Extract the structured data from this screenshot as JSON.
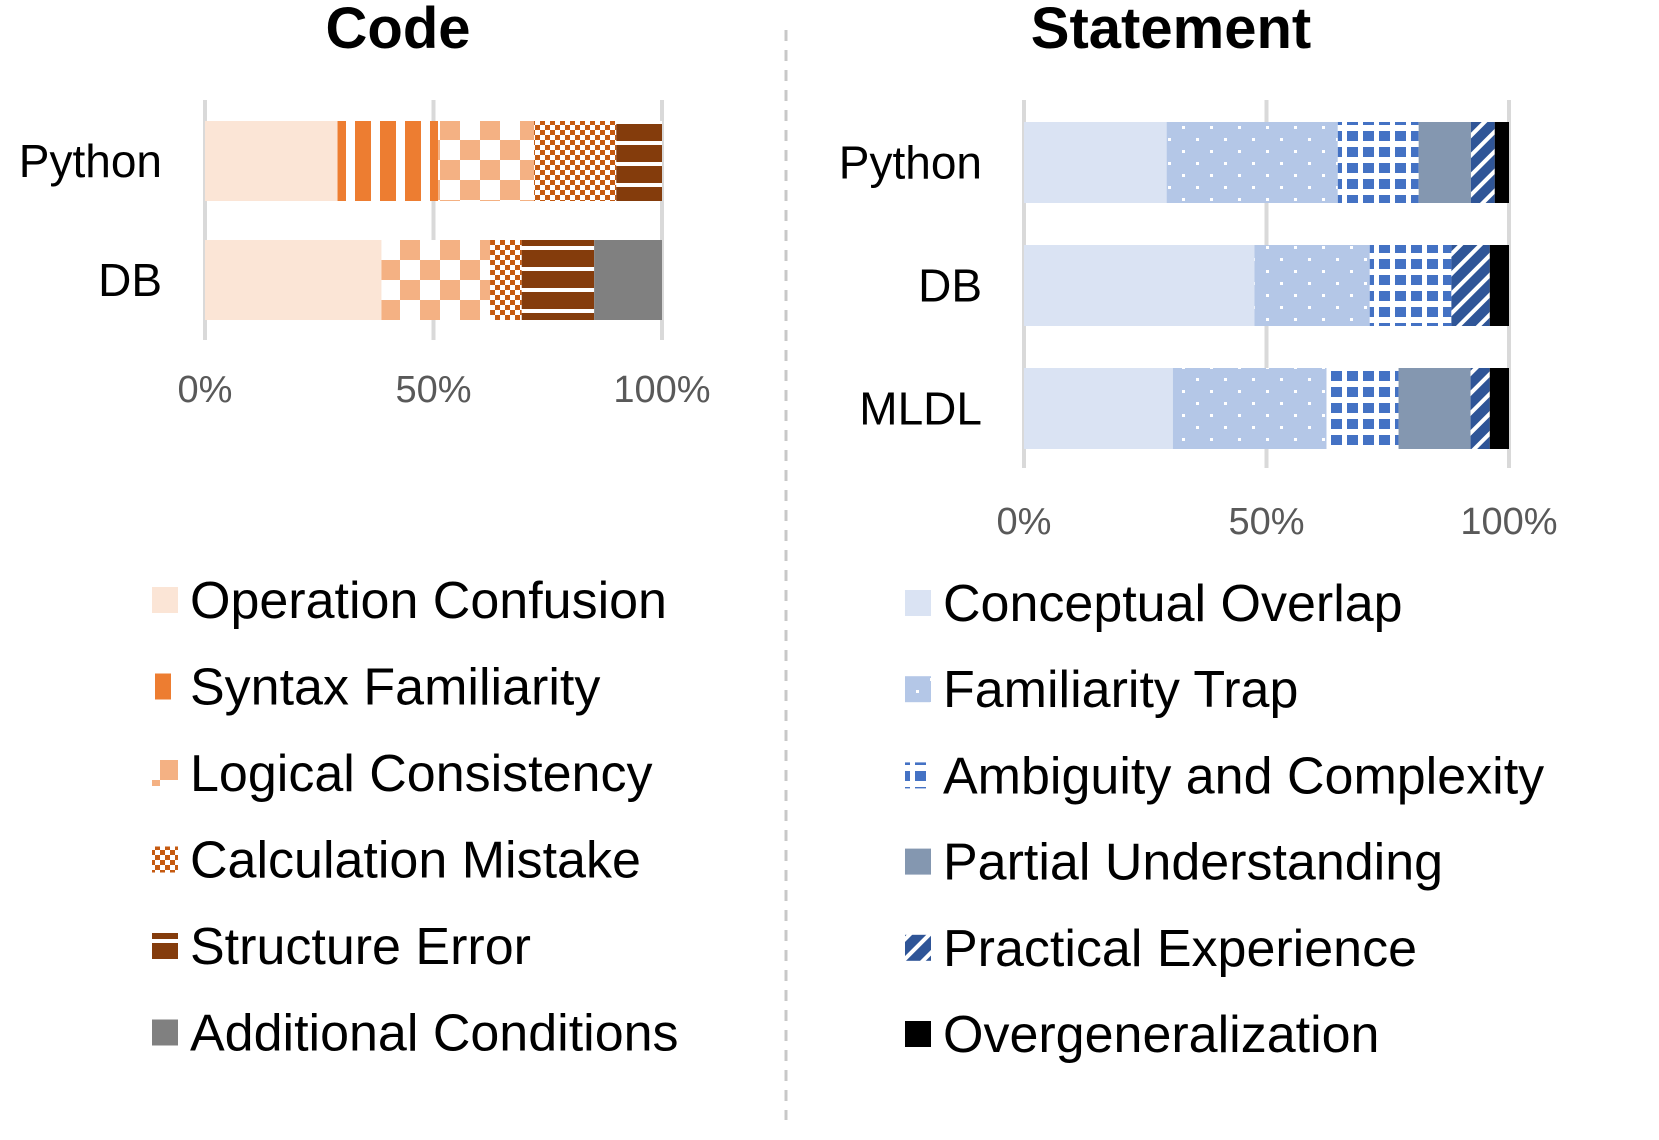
{
  "chart_data": [
    {
      "type": "bar",
      "orientation": "horizontal",
      "stacked": "percent",
      "title": "Code",
      "categories": [
        "Python",
        "DB"
      ],
      "xlim": [
        0,
        100
      ],
      "x_ticks": [
        "0%",
        "50%",
        "100%"
      ],
      "grid": true,
      "legend_position": "bottom",
      "series": [
        {
          "name": "Operation Confusion",
          "values": [
            29,
            39
          ],
          "color": "#fbe5d6",
          "pattern": "solid"
        },
        {
          "name": "Syntax Familiarity",
          "values": [
            22,
            0
          ],
          "color": "#ed7d31",
          "pattern": "vertical-stripes"
        },
        {
          "name": "Logical Consistency",
          "values": [
            21,
            24
          ],
          "color": "#f4b183",
          "pattern": "checker"
        },
        {
          "name": "Calculation Mistake",
          "values": [
            18,
            7
          ],
          "color": "#c55a11",
          "pattern": "small-checker"
        },
        {
          "name": "Structure Error",
          "values": [
            10,
            16
          ],
          "color": "#843c0c",
          "pattern": "horizontal-stripes"
        },
        {
          "name": "Additional Conditions",
          "values": [
            0,
            15
          ],
          "color": "#808080",
          "pattern": "solid"
        }
      ]
    },
    {
      "type": "bar",
      "orientation": "horizontal",
      "stacked": "percent",
      "title": "Statement",
      "categories": [
        "Python",
        "DB",
        "MLDL"
      ],
      "xlim": [
        0,
        100
      ],
      "x_ticks": [
        "0%",
        "50%",
        "100%"
      ],
      "grid": true,
      "legend_position": "bottom",
      "series": [
        {
          "name": "Conceptual Overlap",
          "values": [
            30,
            48,
            31
          ],
          "color": "#dae3f3",
          "pattern": "solid"
        },
        {
          "name": "Familiarity Trap",
          "values": [
            36,
            24,
            32
          ],
          "color": "#b4c7e7",
          "pattern": "dots"
        },
        {
          "name": "Ambiguity and Complexity",
          "values": [
            17,
            17,
            15
          ],
          "color": "#4472c4",
          "pattern": "grid"
        },
        {
          "name": "Partial Understanding",
          "values": [
            11,
            0,
            15
          ],
          "color": "#8497b0",
          "pattern": "solid"
        },
        {
          "name": "Practical Experience",
          "values": [
            5,
            8,
            4
          ],
          "color": "#2f5597",
          "pattern": "diagonal"
        },
        {
          "name": "Overgeneralization",
          "values": [
            3,
            4,
            4
          ],
          "color": "#000000",
          "pattern": "solid"
        }
      ]
    }
  ]
}
